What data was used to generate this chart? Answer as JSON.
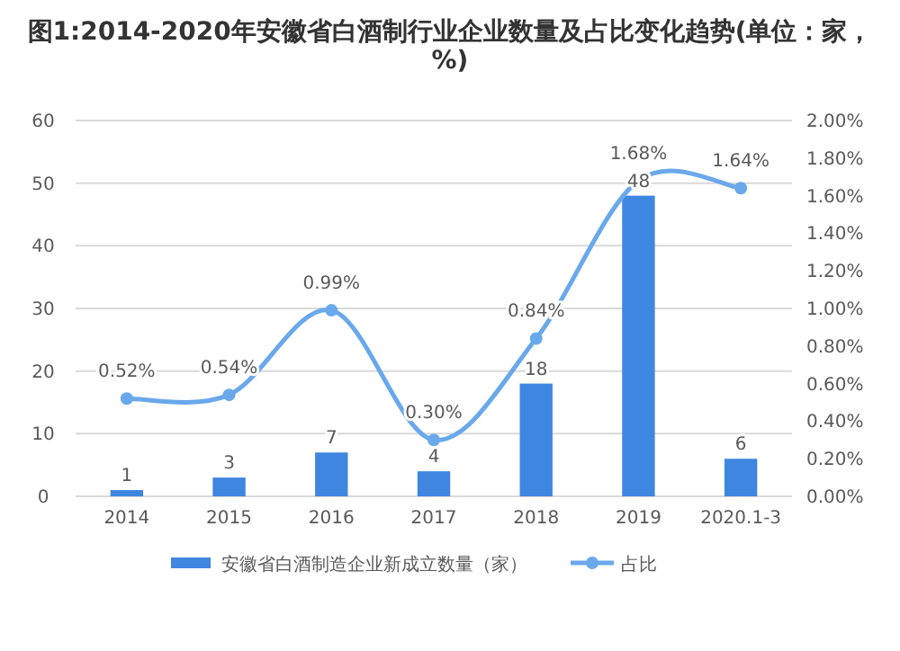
{
  "chart_data": {
    "type": "bar",
    "title": "图1:2014-2020年安徽省白酒制行业企业数量及占比变化趋势(单位：家，%)",
    "categories": [
      "2014",
      "2015",
      "2016",
      "2017",
      "2018",
      "2019",
      "2020.1-3"
    ],
    "series": [
      {
        "name": "安徽省白酒制造企业新成立数量（家）",
        "color": "#3f86e0",
        "values": [
          1,
          3,
          7,
          4,
          18,
          48,
          6
        ],
        "value_labels": [
          "1",
          "3",
          "7",
          "4",
          "18",
          "48",
          "6"
        ]
      },
      {
        "name": "占比",
        "type": "line",
        "axis": "y2",
        "color": "#6aa8ec",
        "marker": "circle",
        "values": [
          0.52,
          0.54,
          0.99,
          0.3,
          0.84,
          1.68,
          1.64
        ],
        "value_labels": [
          "0.52%",
          "0.54%",
          "0.99%",
          "0.30%",
          "0.84%",
          "1.68%",
          "1.64%"
        ]
      }
    ],
    "ylim": [
      0,
      60
    ],
    "yticks": [
      0,
      10,
      20,
      30,
      40,
      50,
      60
    ],
    "y2lim": [
      0,
      2
    ],
    "y2ticks": [
      {
        "value": 0,
        "label": "0.00%"
      },
      {
        "value": 0.2,
        "label": "0.20%"
      },
      {
        "value": 0.4,
        "label": "0.40%"
      },
      {
        "value": 0.6,
        "label": "0.60%"
      },
      {
        "value": 0.8,
        "label": "0.80%"
      },
      {
        "value": 1.0,
        "label": "1.00%"
      },
      {
        "value": 1.2,
        "label": "1.20%"
      },
      {
        "value": 1.4,
        "label": "1.40%"
      },
      {
        "value": 1.6,
        "label": "1.60%"
      },
      {
        "value": 1.8,
        "label": "1.80%"
      },
      {
        "value": 2.0,
        "label": "2.00%"
      }
    ],
    "grid": "y",
    "legend": "bottom"
  }
}
